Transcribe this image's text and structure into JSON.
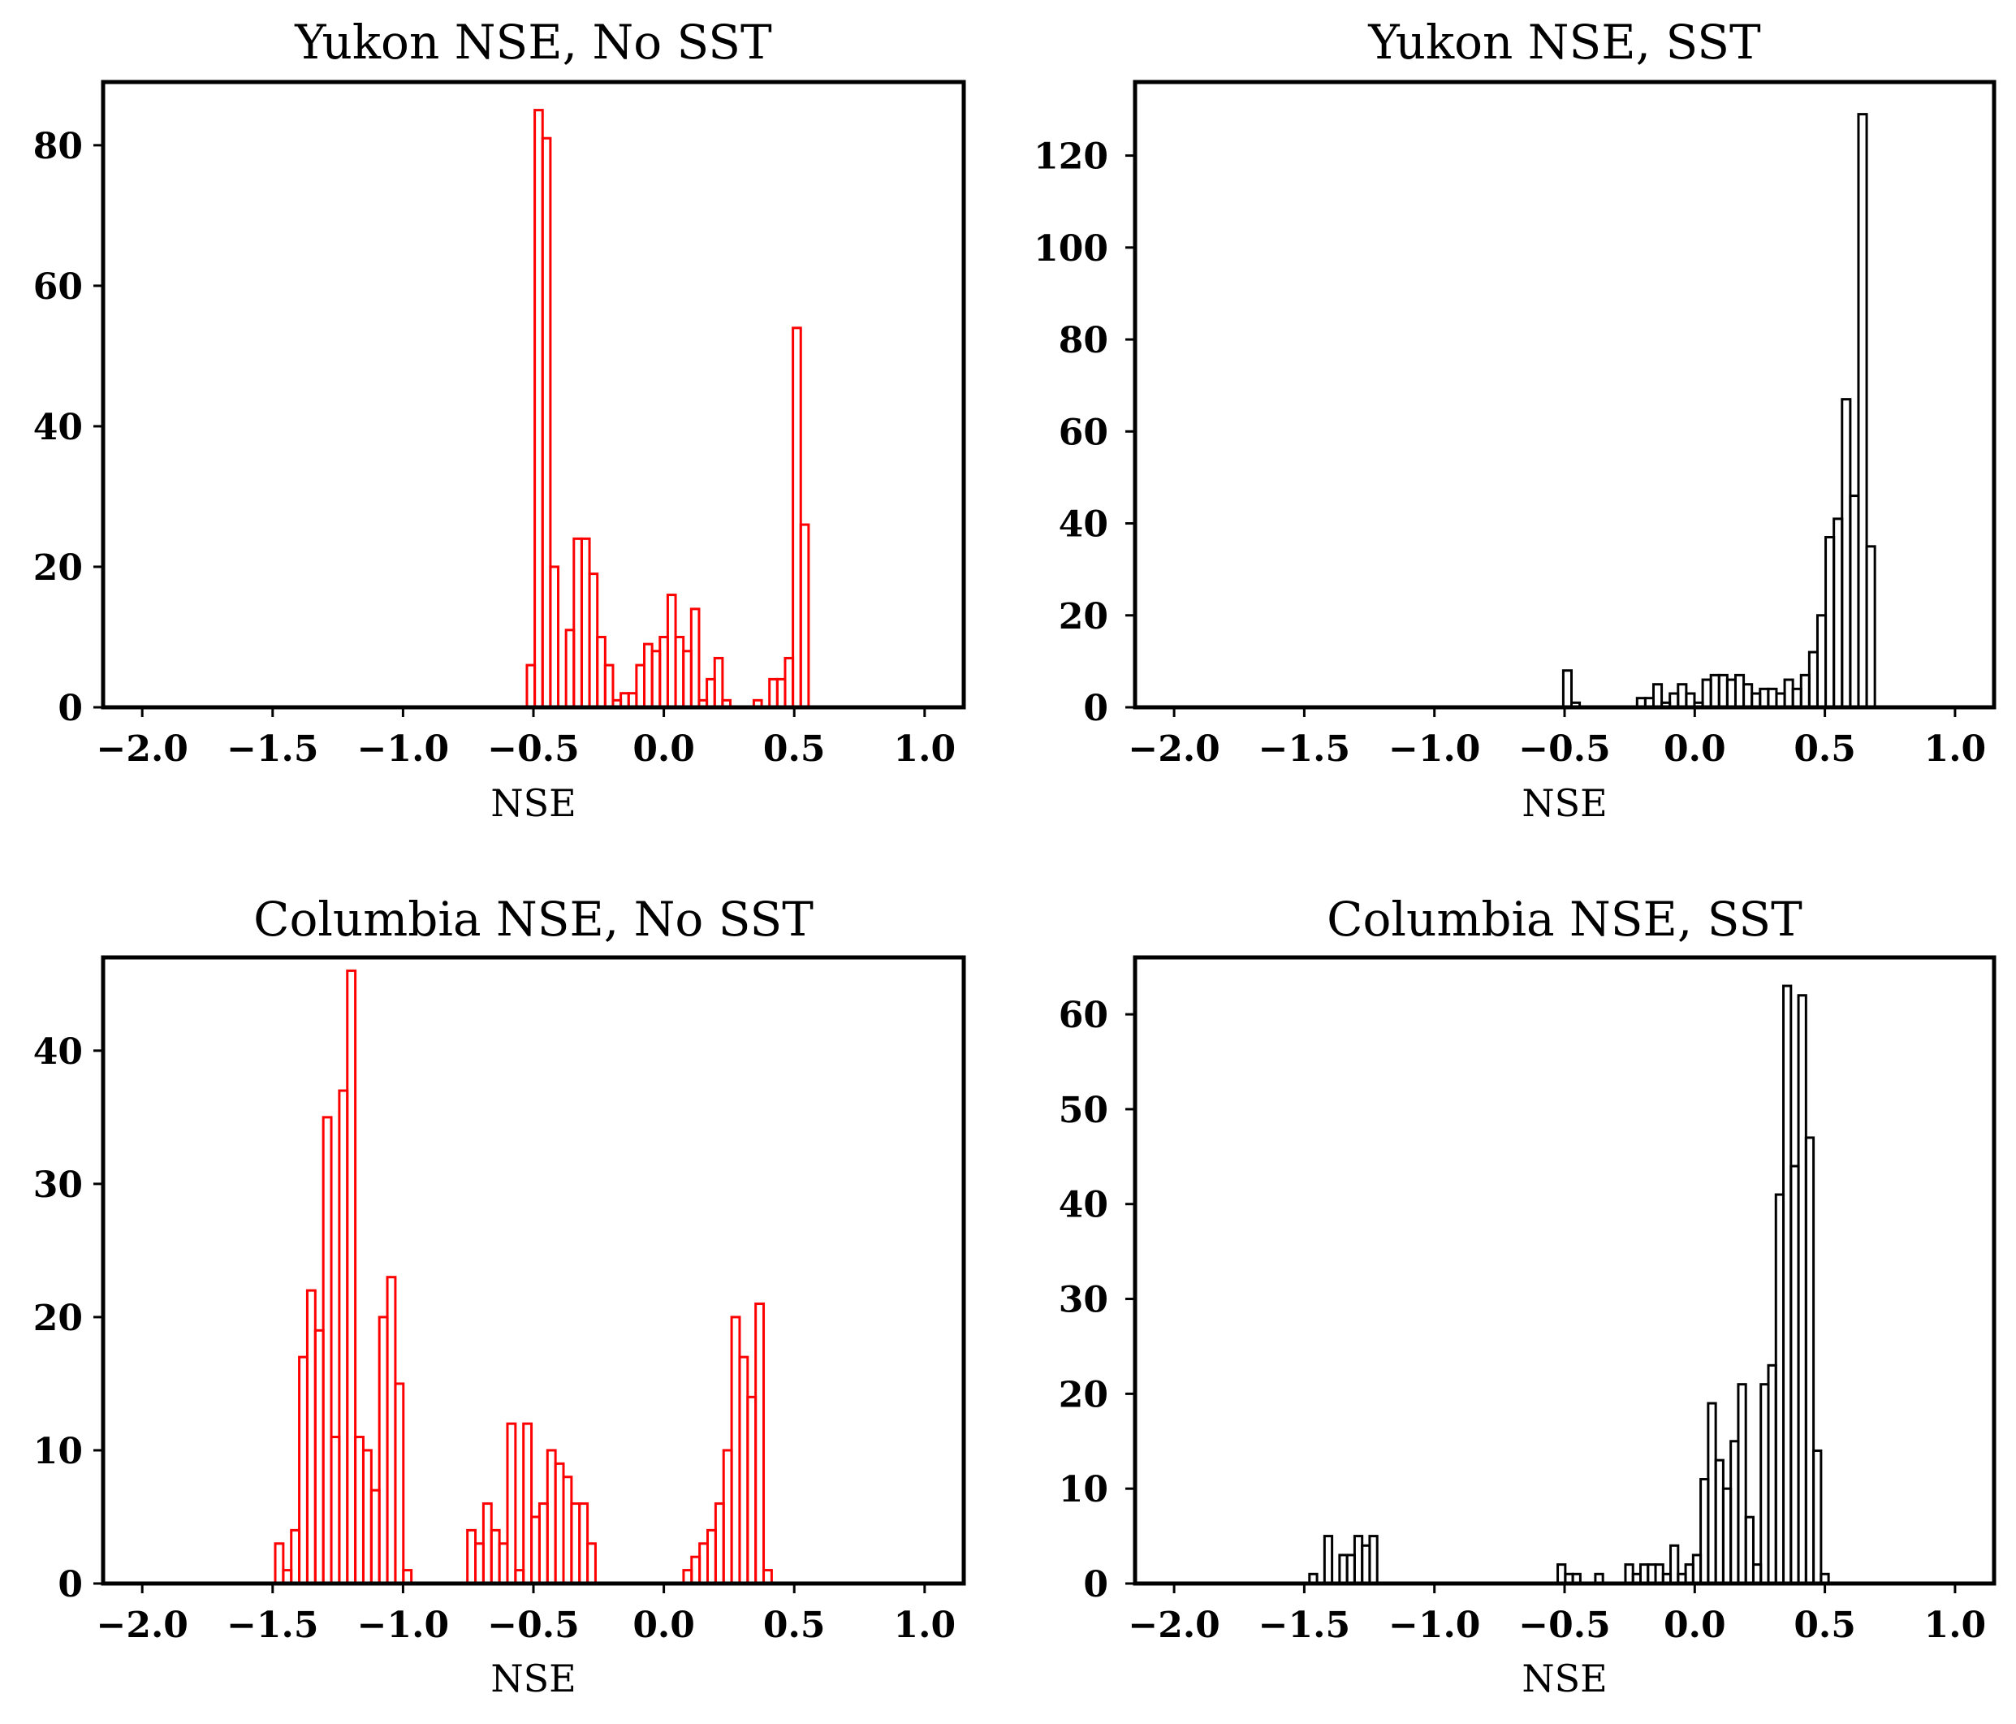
{
  "chart_data": [
    {
      "type": "bar",
      "histogram": true,
      "title": "Yukon NSE, No SST",
      "xlabel": "NSE",
      "ylabel": "",
      "color": "#ff0000",
      "fill": "none",
      "xlim": [
        -2.15,
        1.15
      ],
      "ylim": [
        0,
        89
      ],
      "xticks": [
        -2.0,
        -1.5,
        -1.0,
        -0.5,
        0.0,
        0.5,
        1.0
      ],
      "xtick_labels": [
        "−2.0",
        "−1.5",
        "−1.0",
        "−0.5",
        "0.0",
        "0.5",
        "1.0"
      ],
      "yticks": [
        0,
        20,
        40,
        60,
        80
      ],
      "ytick_labels": [
        "0",
        "20",
        "40",
        "60",
        "80"
      ],
      "bins": {
        "start": -0.525,
        "width": 0.03,
        "counts": [
          6,
          85,
          81,
          20,
          0,
          11,
          24,
          24,
          19,
          10,
          6,
          1,
          2,
          2,
          6,
          9,
          8,
          10,
          16,
          10,
          8,
          14,
          1,
          4,
          7,
          1,
          0,
          0,
          0,
          1,
          0,
          4,
          4,
          7,
          54,
          26
        ]
      }
    },
    {
      "type": "bar",
      "histogram": true,
      "title": "Yukon NSE, SST",
      "xlabel": "NSE",
      "ylabel": "",
      "color": "#000000",
      "fill": "none",
      "xlim": [
        -2.15,
        1.15
      ],
      "ylim": [
        0,
        136
      ],
      "xticks": [
        -2.0,
        -1.5,
        -1.0,
        -0.5,
        0.0,
        0.5,
        1.0
      ],
      "xtick_labels": [
        "−2.0",
        "−1.5",
        "−1.0",
        "−0.5",
        "0.0",
        "0.5",
        "1.0"
      ],
      "yticks": [
        0,
        20,
        40,
        60,
        80,
        100,
        120
      ],
      "ytick_labels": [
        "0",
        "20",
        "40",
        "60",
        "80",
        "100",
        "120"
      ],
      "bins": {
        "start": -0.505,
        "width": 0.0315,
        "counts": [
          8,
          1,
          0,
          0,
          0,
          0,
          0,
          0,
          0,
          2,
          2,
          5,
          1,
          3,
          5,
          3,
          1,
          6,
          7,
          7,
          6,
          7,
          5,
          3,
          4,
          4,
          3,
          6,
          4,
          7,
          12,
          20,
          37,
          41,
          67,
          46,
          129,
          35
        ]
      }
    },
    {
      "type": "bar",
      "histogram": true,
      "title": "Columbia NSE, No SST",
      "xlabel": "NSE",
      "ylabel": "",
      "color": "#ff0000",
      "fill": "none",
      "xlim": [
        -2.15,
        1.15
      ],
      "ylim": [
        0,
        47
      ],
      "xticks": [
        -2.0,
        -1.5,
        -1.0,
        -0.5,
        0.0,
        0.5,
        1.0
      ],
      "xtick_labels": [
        "−2.0",
        "−1.5",
        "−1.0",
        "−0.5",
        "0.0",
        "0.5",
        "1.0"
      ],
      "yticks": [
        0,
        10,
        20,
        30,
        40
      ],
      "ytick_labels": [
        "0",
        "10",
        "20",
        "30",
        "40"
      ],
      "bins": {
        "start": -1.49,
        "width": 0.0307,
        "counts": [
          3,
          1,
          4,
          17,
          22,
          19,
          35,
          11,
          37,
          46,
          11,
          10,
          7,
          20,
          23,
          15,
          1,
          0,
          0,
          0,
          0,
          0,
          0,
          0,
          4,
          3,
          6,
          4,
          3,
          12,
          1,
          12,
          5,
          6,
          10,
          9,
          8,
          6,
          6,
          3,
          0,
          0,
          0,
          0,
          0,
          0,
          0,
          0,
          0,
          0,
          0,
          1,
          2,
          3,
          4,
          6,
          10,
          20,
          17,
          14,
          21,
          1
        ]
      }
    },
    {
      "type": "bar",
      "histogram": true,
      "title": "Columbia NSE, SST",
      "xlabel": "NSE",
      "ylabel": "",
      "color": "#000000",
      "fill": "none",
      "xlim": [
        -2.15,
        1.15
      ],
      "ylim": [
        0,
        66
      ],
      "xticks": [
        -2.0,
        -1.5,
        -1.0,
        -0.5,
        0.0,
        0.5,
        1.0
      ],
      "xtick_labels": [
        "−2.0",
        "−1.5",
        "−1.0",
        "−0.5",
        "0.0",
        "0.5",
        "1.0"
      ],
      "yticks": [
        0,
        10,
        20,
        30,
        40,
        50,
        60
      ],
      "ytick_labels": [
        "0",
        "10",
        "20",
        "30",
        "40",
        "50",
        "60"
      ],
      "bins": {
        "start": -1.48,
        "width": 0.0289,
        "counts": [
          1,
          0,
          5,
          0,
          3,
          3,
          5,
          4,
          5,
          0,
          0,
          0,
          0,
          0,
          0,
          0,
          0,
          0,
          0,
          0,
          0,
          0,
          0,
          0,
          0,
          0,
          0,
          0,
          0,
          0,
          0,
          0,
          0,
          2,
          1,
          1,
          0,
          0,
          1,
          0,
          0,
          0,
          2,
          1,
          2,
          2,
          2,
          1,
          4,
          1,
          2,
          3,
          11,
          19,
          13,
          10,
          15,
          21,
          7,
          2,
          21,
          23,
          41,
          63,
          44,
          62,
          47,
          14,
          1
        ]
      }
    }
  ]
}
